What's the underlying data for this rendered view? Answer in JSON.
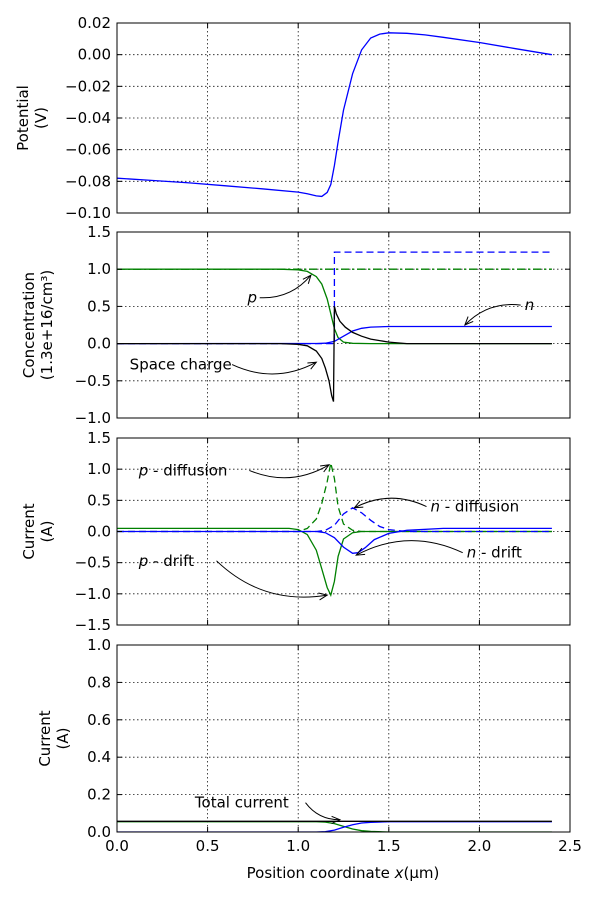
{
  "colors": {
    "blue": "#0000ff",
    "green": "#008000",
    "black": "#000000"
  },
  "xlabel_text": "Position coordinate ",
  "xlabel_var": "x",
  "xlabel_unit": "(μm)",
  "chart_data": [
    {
      "type": "line",
      "ylabel_lines": [
        "Potential",
        "(V)"
      ],
      "xlim": [
        0,
        2.5
      ],
      "ylim": [
        -0.1,
        0.02
      ],
      "grid": true,
      "xticks": [],
      "yticks": [
        -0.1,
        -0.08,
        -0.06,
        -0.04,
        -0.02,
        0.0,
        0.02
      ],
      "ytick_labels": [
        "−0.10",
        "−0.08",
        "−0.06",
        "−0.04",
        "−0.02",
        "0.00",
        "0.02"
      ],
      "series": [
        {
          "color": "blue",
          "dash": "solid",
          "x": [
            0,
            0.2,
            0.4,
            0.6,
            0.8,
            1.0,
            1.05,
            1.1,
            1.13,
            1.16,
            1.18,
            1.2,
            1.22,
            1.25,
            1.3,
            1.35,
            1.4,
            1.45,
            1.5,
            1.6,
            1.7,
            1.8,
            2.0,
            2.2,
            2.4
          ],
          "y": [
            -0.078,
            -0.0795,
            -0.081,
            -0.0828,
            -0.0847,
            -0.0868,
            -0.0878,
            -0.0892,
            -0.0895,
            -0.087,
            -0.082,
            -0.07,
            -0.055,
            -0.035,
            -0.012,
            0.003,
            0.0105,
            0.013,
            0.0138,
            0.0135,
            0.0125,
            0.011,
            0.0077,
            0.0038,
            0.0
          ]
        }
      ]
    },
    {
      "type": "line",
      "ylabel_lines": [
        "Concentration",
        "(1.3e+16/cm³)"
      ],
      "xlim": [
        0,
        2.5
      ],
      "ylim": [
        -1.0,
        1.5
      ],
      "grid": true,
      "xticks": [],
      "yticks": [
        -1.0,
        -0.5,
        0.0,
        0.5,
        1.0,
        1.5
      ],
      "ytick_labels": [
        "−1.0",
        "−0.5",
        "0.0",
        "0.5",
        "1.0",
        "1.5"
      ],
      "series": [
        {
          "color": "blue",
          "dash": "dashed",
          "x": [
            0,
            1.2,
            1.2,
            2.4
          ],
          "y": [
            0,
            0,
            1.23,
            1.23
          ]
        },
        {
          "color": "green",
          "dash": "dashdot",
          "x": [
            0,
            1.2,
            1.2,
            2.4
          ],
          "y": [
            1.0,
            1.0,
            1.0,
            1.0
          ]
        },
        {
          "color": "green",
          "dash": "solid",
          "x": [
            0,
            0.9,
            1.0,
            1.05,
            1.1,
            1.13,
            1.16,
            1.18,
            1.2,
            1.22,
            1.25,
            1.3,
            1.4,
            1.5,
            2.4
          ],
          "y": [
            1.0,
            1.0,
            0.99,
            0.97,
            0.9,
            0.8,
            0.6,
            0.4,
            0.2,
            0.08,
            0.02,
            0.004,
            0.0,
            0.0,
            0.0
          ]
        },
        {
          "color": "blue",
          "dash": "solid",
          "x": [
            0,
            1.1,
            1.15,
            1.2,
            1.25,
            1.3,
            1.35,
            1.4,
            1.5,
            1.6,
            2.4
          ],
          "y": [
            0.0,
            0.001,
            0.005,
            0.03,
            0.1,
            0.17,
            0.205,
            0.222,
            0.23,
            0.23,
            0.23
          ]
        },
        {
          "color": "black",
          "dash": "solid",
          "x": [
            0,
            0.9,
            1.0,
            1.05,
            1.1,
            1.13,
            1.15,
            1.17,
            1.185,
            1.195,
            1.2,
            1.21,
            1.23,
            1.26,
            1.3,
            1.35,
            1.4,
            1.5,
            1.6,
            2.4
          ],
          "y": [
            0,
            0,
            -0.01,
            -0.03,
            -0.1,
            -0.2,
            -0.33,
            -0.5,
            -0.7,
            -0.78,
            0.5,
            0.4,
            0.3,
            0.22,
            0.15,
            0.1,
            0.06,
            0.02,
            0.0,
            0.0
          ]
        }
      ],
      "annotations": [
        {
          "text": "p",
          "italic": true,
          "x": 0.72,
          "y": 0.55,
          "to": [
            1.07,
            0.92
          ]
        },
        {
          "text": "n",
          "italic": true,
          "x": 2.25,
          "y": 0.45,
          "to": [
            1.92,
            0.25
          ]
        },
        {
          "text": "Space charge",
          "italic": false,
          "x": 0.07,
          "y": -0.35,
          "to": [
            1.1,
            -0.25
          ]
        }
      ]
    },
    {
      "type": "line",
      "ylabel_lines": [
        "Current",
        "(A)"
      ],
      "xlim": [
        0,
        2.5
      ],
      "ylim": [
        -1.5,
        1.5
      ],
      "grid": true,
      "xticks": [],
      "yticks": [
        -1.5,
        -1.0,
        -0.5,
        0.0,
        0.5,
        1.0,
        1.5
      ],
      "ytick_labels": [
        "−1.5",
        "−1.0",
        "−0.5",
        "0.0",
        "0.5",
        "1.0",
        "1.5"
      ],
      "series": [
        {
          "color": "green",
          "dash": "dashed",
          "x": [
            0,
            1.0,
            1.05,
            1.1,
            1.13,
            1.16,
            1.18,
            1.2,
            1.22,
            1.25,
            1.3,
            1.35,
            1.4,
            2.4
          ],
          "y": [
            0,
            0.0,
            0.05,
            0.2,
            0.45,
            0.8,
            1.1,
            0.85,
            0.4,
            0.12,
            0.02,
            0.0,
            0.0,
            0.0
          ]
        },
        {
          "color": "green",
          "dash": "solid",
          "x": [
            0,
            0.95,
            1.0,
            1.05,
            1.1,
            1.13,
            1.16,
            1.18,
            1.2,
            1.22,
            1.25,
            1.3,
            1.35,
            1.4,
            1.5,
            2.4
          ],
          "y": [
            0.05,
            0.05,
            0.03,
            -0.05,
            -0.3,
            -0.6,
            -0.9,
            -1.02,
            -0.8,
            -0.4,
            -0.12,
            -0.02,
            0.0,
            0.0,
            0.0,
            0.0
          ]
        },
        {
          "color": "blue",
          "dash": "dashed",
          "x": [
            0,
            1.1,
            1.15,
            1.2,
            1.25,
            1.3,
            1.35,
            1.4,
            1.45,
            1.5,
            1.6,
            2.4
          ],
          "y": [
            0,
            0.0,
            0.02,
            0.1,
            0.28,
            0.38,
            0.3,
            0.18,
            0.08,
            0.03,
            0.0,
            0.0
          ]
        },
        {
          "color": "blue",
          "dash": "solid",
          "x": [
            0,
            1.1,
            1.15,
            1.2,
            1.25,
            1.3,
            1.33,
            1.37,
            1.42,
            1.5,
            1.6,
            1.8,
            2.4
          ],
          "y": [
            0.0,
            0.0,
            -0.02,
            -0.1,
            -0.25,
            -0.35,
            -0.34,
            -0.26,
            -0.13,
            -0.03,
            0.02,
            0.05,
            0.05
          ]
        }
      ],
      "annotations": [
        {
          "text": "p",
          "italic": true,
          "suffix": " - diffusion",
          "x": 0.12,
          "y": 0.9,
          "to": [
            1.17,
            1.07
          ]
        },
        {
          "text": "n",
          "italic": true,
          "suffix": " - diffusion",
          "x": 1.73,
          "y": 0.32,
          "to": [
            1.31,
            0.38
          ]
        },
        {
          "text": "p",
          "italic": true,
          "suffix": " - drift",
          "x": 0.12,
          "y": -0.55,
          "to": [
            1.16,
            -1.02
          ]
        },
        {
          "text": "n",
          "italic": true,
          "suffix": " - drift",
          "x": 1.93,
          "y": -0.42,
          "to": [
            1.32,
            -0.38
          ]
        }
      ]
    },
    {
      "type": "line",
      "ylabel_lines": [
        "Current",
        "(A)"
      ],
      "xlim": [
        0,
        2.5
      ],
      "ylim": [
        0,
        1.0
      ],
      "grid": true,
      "xticks": [
        0.0,
        0.5,
        1.0,
        1.5,
        2.0,
        2.5
      ],
      "xtick_labels": [
        "0.0",
        "0.5",
        "1.0",
        "1.5",
        "2.0",
        "2.5"
      ],
      "yticks": [
        0.0,
        0.2,
        0.4,
        0.6,
        0.8,
        1.0
      ],
      "ytick_labels": [
        "0.0",
        "0.2",
        "0.4",
        "0.6",
        "0.8",
        "1.0"
      ],
      "series": [
        {
          "color": "green",
          "dash": "solid",
          "x": [
            0,
            1.1,
            1.15,
            1.2,
            1.25,
            1.3,
            1.35,
            1.4,
            1.5,
            2.4
          ],
          "y": [
            0.055,
            0.055,
            0.053,
            0.045,
            0.03,
            0.016,
            0.007,
            0.003,
            0.0,
            0.0
          ]
        },
        {
          "color": "blue",
          "dash": "solid",
          "x": [
            0,
            1.1,
            1.15,
            1.2,
            1.25,
            1.3,
            1.35,
            1.4,
            1.5,
            2.4
          ],
          "y": [
            0.0,
            0.0,
            0.002,
            0.01,
            0.025,
            0.039,
            0.048,
            0.052,
            0.055,
            0.055
          ]
        },
        {
          "color": "black",
          "dash": "solid",
          "x": [
            0,
            2.4
          ],
          "y": [
            0.057,
            0.057
          ]
        }
      ],
      "annotations": [
        {
          "text": "Total current",
          "italic": false,
          "x": 0.43,
          "y": 0.13,
          "to": [
            1.23,
            0.065
          ]
        }
      ]
    }
  ]
}
